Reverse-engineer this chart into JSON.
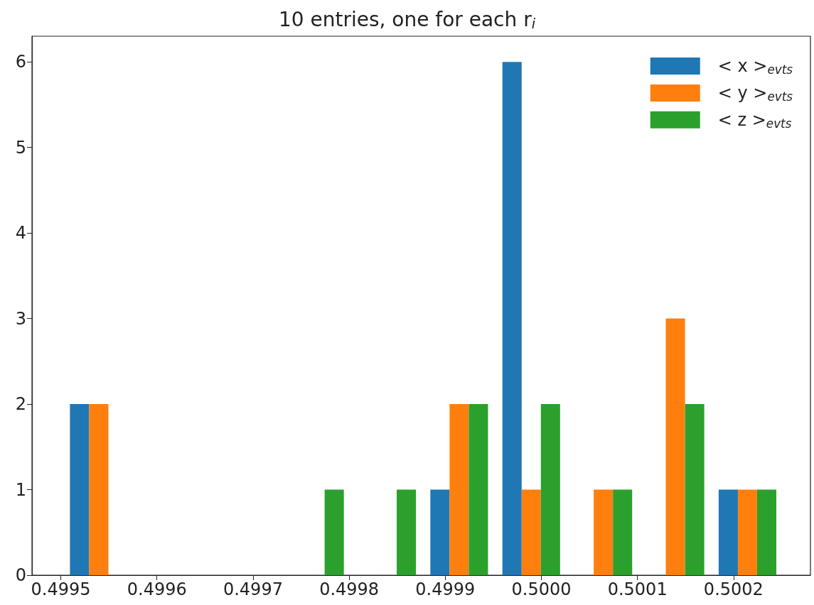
{
  "chart_data": {
    "type": "histogram",
    "title": "10 entries, one for each r$_{i}$",
    "bins": [
      0.499502,
      0.499577,
      0.499652,
      0.499727,
      0.499802,
      0.499877,
      0.499952,
      0.500027,
      0.500102,
      0.500177,
      0.500252
    ],
    "series": [
      {
        "name": "< x >$_{evts}$",
        "color": "#1f77b4",
        "values": [
          2,
          0,
          0,
          0,
          0,
          1,
          6,
          0,
          0,
          1
        ]
      },
      {
        "name": "< y >$_{evts}$",
        "color": "#ff7f0e",
        "values": [
          2,
          0,
          0,
          0,
          0,
          2,
          1,
          1,
          3,
          1
        ]
      },
      {
        "name": "< z >$_{evts}$",
        "color": "#2ca02c",
        "values": [
          0,
          0,
          0,
          1,
          1,
          2,
          2,
          1,
          2,
          1
        ]
      }
    ],
    "xlim": [
      0.49947,
      0.50028
    ],
    "ylim": [
      0,
      6.3
    ],
    "xticks": [
      {
        "value": 0.4995,
        "label": "0.4995"
      },
      {
        "value": 0.4996,
        "label": "0.4996"
      },
      {
        "value": 0.4997,
        "label": "0.4997"
      },
      {
        "value": 0.4998,
        "label": "0.4998"
      },
      {
        "value": 0.4999,
        "label": "0.4999"
      },
      {
        "value": 0.5,
        "label": "0.5000"
      },
      {
        "value": 0.5001,
        "label": "0.5001"
      },
      {
        "value": 0.5002,
        "label": "0.5002"
      }
    ],
    "yticks": [
      0,
      1,
      2,
      3,
      4,
      5,
      6
    ],
    "grid": false,
    "legend": "top right"
  }
}
